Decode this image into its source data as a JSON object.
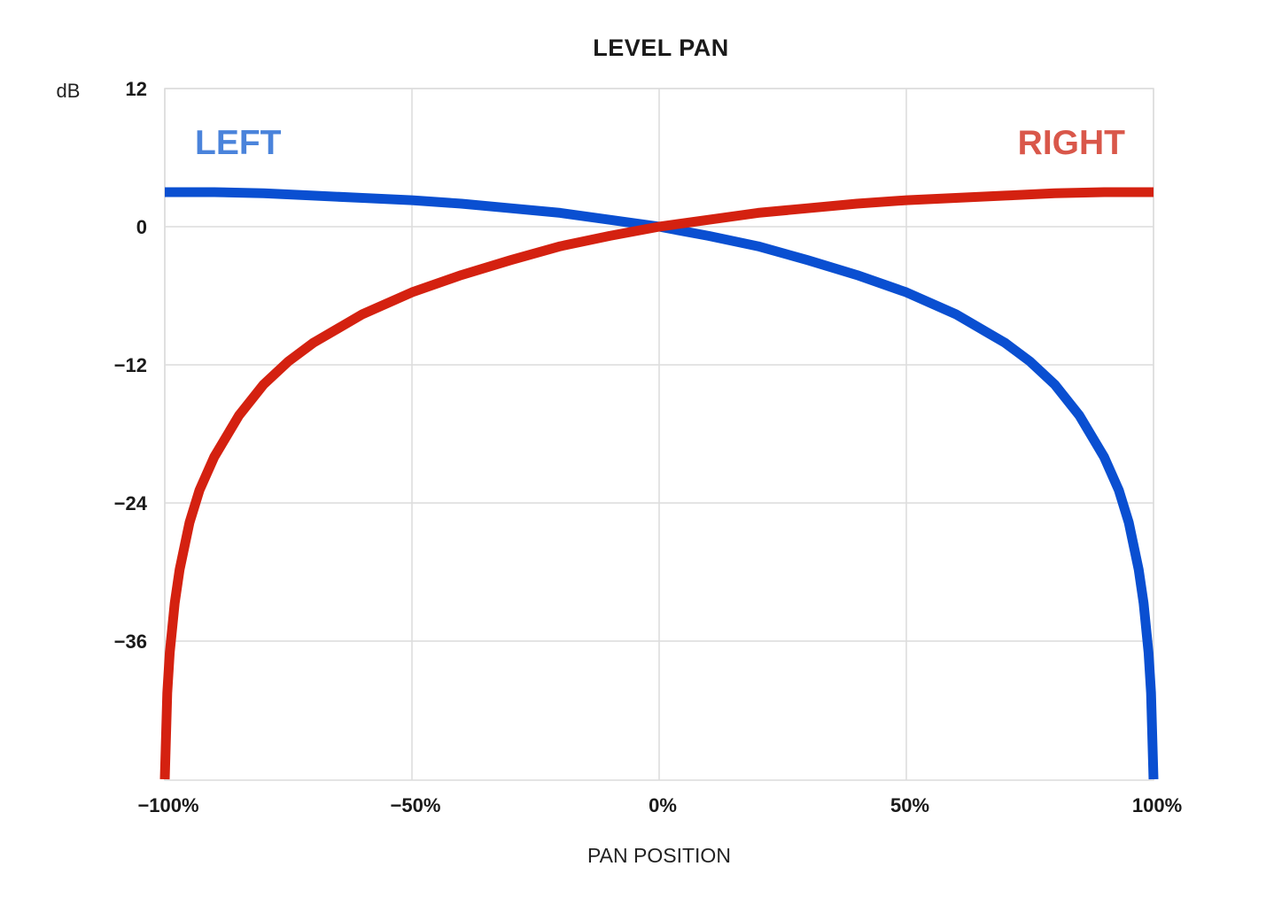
{
  "chart_data": {
    "type": "line",
    "title": "LEVEL PAN",
    "ylabel": "dB",
    "xlabel": "PAN POSITION",
    "xlim": [
      -100,
      100
    ],
    "ylim": [
      -48,
      12
    ],
    "y_ticks": [
      12,
      0,
      -12,
      -24,
      -36
    ],
    "y_tick_labels": [
      "12",
      "0",
      "−12",
      "−24",
      "−36"
    ],
    "x_ticks": [
      -100,
      -50,
      0,
      50,
      100
    ],
    "x_tick_labels": [
      "−100%",
      "−50%",
      "0%",
      "50%",
      "100%"
    ],
    "grid": true,
    "series": [
      {
        "name": "LEFT",
        "color": "#0a4fd1",
        "label_color": "#4a83db",
        "x": [
          -100,
          -90,
          -80,
          -70,
          -60,
          -50,
          -40,
          -30,
          -20,
          -10,
          0,
          10,
          20,
          30,
          40,
          50,
          60,
          70,
          75,
          80,
          85,
          90,
          93,
          95,
          97,
          98,
          99,
          99.5,
          100
        ],
        "y": [
          3.0,
          3.0,
          2.9,
          2.7,
          2.5,
          2.3,
          2.0,
          1.6,
          1.2,
          0.6,
          0,
          -0.8,
          -1.7,
          -2.9,
          -4.2,
          -5.7,
          -7.6,
          -10.1,
          -11.7,
          -13.7,
          -16.4,
          -20.0,
          -22.9,
          -25.7,
          -29.8,
          -32.7,
          -37.0,
          -40.5,
          -48
        ]
      },
      {
        "name": "RIGHT",
        "color": "#d42110",
        "label_color": "#d9574a",
        "x": [
          -100,
          -99.5,
          -99,
          -98,
          -97,
          -95,
          -93,
          -90,
          -85,
          -80,
          -75,
          -70,
          -60,
          -50,
          -40,
          -30,
          -20,
          -10,
          0,
          10,
          20,
          30,
          40,
          50,
          60,
          70,
          80,
          90,
          100
        ],
        "y": [
          -48,
          -40.5,
          -37.0,
          -32.7,
          -29.8,
          -25.7,
          -22.9,
          -20.0,
          -16.4,
          -13.7,
          -11.7,
          -10.1,
          -7.6,
          -5.7,
          -4.2,
          -2.9,
          -1.7,
          -0.8,
          0,
          0.6,
          1.2,
          1.6,
          2.0,
          2.3,
          2.5,
          2.7,
          2.9,
          3.0,
          3.0
        ]
      }
    ]
  }
}
